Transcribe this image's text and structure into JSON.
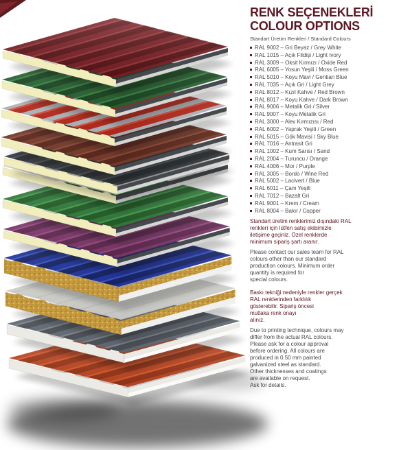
{
  "page": {
    "background": "#ffffff"
  },
  "header": {
    "title_line1": "RENK SEÇENEKLERİ",
    "title_line2": "COLOUR OPTIONS",
    "subtitle": "Standart Üretim Renkleri / Standard Colours"
  },
  "theme": {
    "maroon": "#5c1723",
    "gray": "#474747",
    "foam_pur": "#f2edbd",
    "rockwool": "#c59a3f",
    "rockwool_dark": "#a67c2c",
    "rockwool_light": "#e6c468",
    "eps": "#ececе8",
    "shadow": "#000000"
  },
  "ral_list": [
    "RAL 9002 – Gri Beyaz / Grey White",
    "RAL 1015 – Açık Fildişi / Light Ivory",
    "RAL 3009 – Oksit Kırmızı / Oxide Red",
    "RAL 6005 – Yosun Yeşili / Moss Green",
    "RAL 5010 – Koyu Mavi / Gentian Blue",
    "RAL 7035 – Açık Gri / Light Grey",
    "RAL 8012 – Kızıl Kahve / Red Brown",
    "RAL 8017 – Koyu Kahve / Dark Brown",
    "RAL 9006 – Metalik Gri / Silver",
    "RAL 9007 – Koyu Metalik Gri",
    "RAL 3000 – Alev Kırmızısı / Red",
    "RAL 6002 – Yaprak Yeşili / Green",
    "RAL 5015 – Gök Mavisi / Sky Blue",
    "RAL 7016 – Antrasit Gri",
    "RAL 1002 – Kum Sarısı / Sand",
    "RAL 2004 – Turuncu / Orange",
    "RAL 4006 – Mor / Purple",
    "RAL 3005 – Bordo / Wine Red",
    "RAL 5002 – Lacivert / Blue",
    "RAL 6011 – Çam Yeşili",
    "RAL 7012 – Bazalt Gri",
    "RAL 9001 – Krem / Cream",
    "RAL 8004 – Bakır / Copper"
  ],
  "notes": [
    {
      "tone": "maroon",
      "lines": [
        "Standart üretim renklerimiz dışındaki RAL",
        "renkleri için lütfen satış ekibimizle",
        "iletişime geçiniz. Özel renklerde",
        "minimum sipariş şartı aranır."
      ]
    },
    {
      "tone": "gray",
      "lines": [
        "Please contact our sales team for RAL",
        "colours other than our standard",
        "production colours. Minimum order",
        "quantity is required for",
        "special colours."
      ]
    },
    {
      "tone": "maroon",
      "lines": [
        "Baskı tekniği nedeniyle renkler gerçek",
        "RAL renklerinden farklılık",
        "gösterebilir. Sipariş öncesi",
        "mutlaka renk onayı",
        "alınız."
      ]
    },
    {
      "tone": "gray",
      "lines": [
        "Due to printing technique, colours may",
        "differ from the actual RAL colours.",
        "Please ask for a colour approval",
        "before ordering. All colours are",
        "produced in 0.50 mm painted",
        "galvanized steel as standard.",
        "Other thicknesses and coatings",
        "are available on request.",
        "Ask for details."
      ]
    }
  ],
  "panels": [
    {
      "name": "oxide-red",
      "top": "#7c2127",
      "rib_dark": "#5c1518",
      "rib_light": "#9a383c",
      "core": "pur",
      "flat": false
    },
    {
      "name": "moss-green",
      "top": "#2b6834",
      "rib_dark": "#1c4b24",
      "rib_light": "#3f8c4a",
      "core": "pur",
      "flat": false
    },
    {
      "name": "silver-red-rib",
      "top": "#b9bec4",
      "rib_dark": "#c02a1b",
      "rib_light": "#e8503a",
      "core": "pur",
      "flat": false
    },
    {
      "name": "red-brown",
      "top": "#7e3d2c",
      "rib_dark": "#61291c",
      "rib_light": "#97503b",
      "core": "pur",
      "flat": false
    },
    {
      "name": "anthracite",
      "top": "#3e4347",
      "rib_dark": "#32363a",
      "rib_light": "#565c62",
      "core": "pur",
      "flat": false
    },
    {
      "name": "grey-white",
      "top": "#dfdfdb",
      "rib_dark": "#c6c6c1",
      "rib_light": "#f2f2ee",
      "core": "pur",
      "flat": true
    },
    {
      "name": "leaf-green",
      "top": "#35823e",
      "rib_dark": "#24632a",
      "rib_light": "#4ba455",
      "core": "pur",
      "flat": false
    },
    {
      "name": "purple",
      "top": "#833a6f",
      "rib_dark": "#652a54",
      "rib_light": "#a14e8b",
      "core": "pur",
      "flat": false
    },
    {
      "name": "gentian-blue",
      "top": "#2338a6",
      "rib_dark": "#17266d",
      "rib_light": "#3c57cf",
      "core": "wool",
      "flat": false
    },
    {
      "name": "light-grey",
      "top": "#dbdcd7",
      "rib_dark": "#c3c4bf",
      "rib_light": "#eeefec",
      "core": "wool",
      "flat": true
    },
    {
      "name": "slate-grey",
      "top": "#68707a",
      "rib_dark": "#4f555c",
      "rib_light": "#858d95",
      "core": "eps",
      "flat": false
    },
    {
      "name": "orange-red",
      "top": "#c64a24",
      "rib_dark": "#9f3819",
      "rib_light": "#e2602f",
      "core": "eps",
      "flat": false
    }
  ]
}
